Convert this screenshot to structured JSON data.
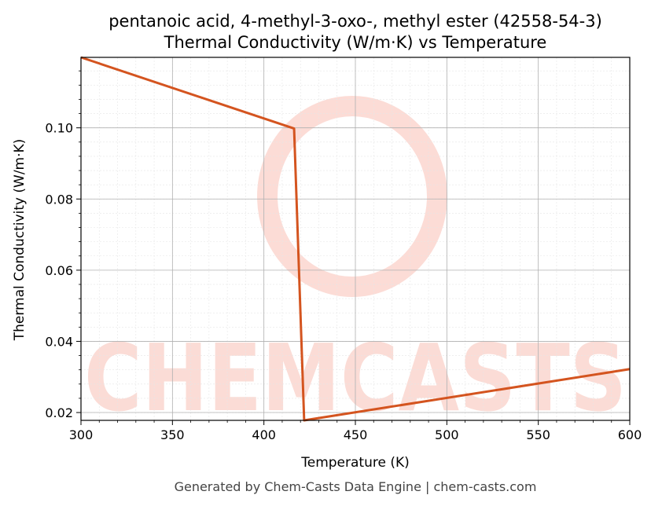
{
  "chart_data": {
    "type": "line",
    "title": "pentanoic acid, 4-methyl-3-oxo-, methyl ester (42558-54-3)",
    "subtitle": "Thermal Conductivity (W/m·K) vs Temperature",
    "xlabel": "Temperature (K)",
    "ylabel": "Thermal Conductivity (W/m·K)",
    "xlim": [
      300,
      600
    ],
    "ylim": [
      0.0178,
      0.1198
    ],
    "xticks": [
      300,
      350,
      400,
      450,
      500,
      550,
      600
    ],
    "yticks": [
      0.02,
      0.04,
      0.06,
      0.08,
      0.1
    ],
    "ytick_labels": [
      "0.02",
      "0.04",
      "0.06",
      "0.08",
      "0.10"
    ],
    "grid": true,
    "line_color": "#d4541f",
    "series": [
      {
        "x": [
          300,
          416.5,
          422,
          600
        ],
        "y": [
          0.1198,
          0.0998,
          0.0178,
          0.0322
        ]
      }
    ]
  },
  "watermark": {
    "text": "CHEMCASTS",
    "color": "#fbd6cf"
  },
  "footer": "Generated by Chem-Casts Data Engine | chem-casts.com"
}
